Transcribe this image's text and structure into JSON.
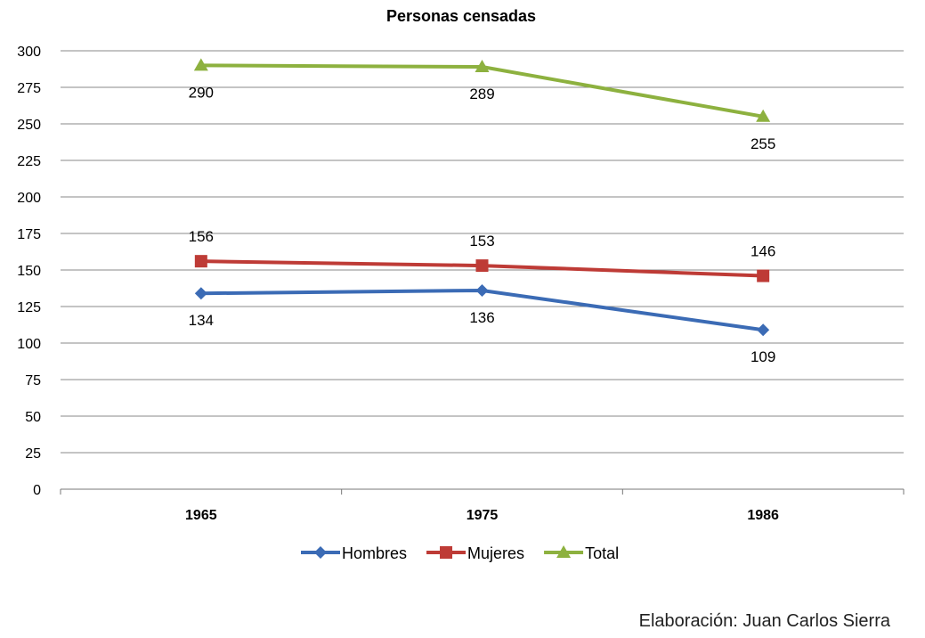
{
  "chart_data": {
    "type": "line",
    "title": "Personas censadas",
    "categories": [
      "1965",
      "1975",
      "1986"
    ],
    "ylim": [
      0,
      300
    ],
    "yticks": [
      0,
      25,
      50,
      75,
      100,
      125,
      150,
      175,
      200,
      225,
      250,
      275,
      300
    ],
    "grid": true,
    "legend_position": "bottom",
    "series": [
      {
        "name": "Hombres",
        "values": [
          134,
          136,
          109
        ],
        "color": "#3B6BB5",
        "marker": "diamond",
        "label_pos": "below"
      },
      {
        "name": "Mujeres",
        "values": [
          156,
          153,
          146
        ],
        "color": "#BE3B36",
        "marker": "square",
        "label_pos": "above"
      },
      {
        "name": "Total",
        "values": [
          290,
          289,
          255
        ],
        "color": "#8DB13F",
        "marker": "triangle",
        "label_pos": "below"
      }
    ]
  },
  "credit": "Elaboración: Juan Carlos Sierra"
}
